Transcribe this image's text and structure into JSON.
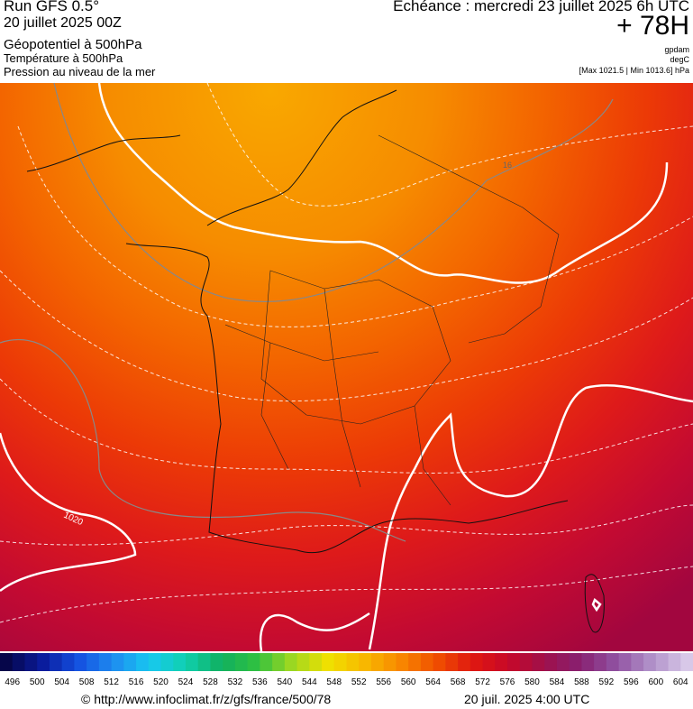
{
  "header": {
    "run": "Run GFS 0.5°",
    "date": "20 juillet 2025 00Z",
    "field": "Géopotentiel à 500hPa",
    "field2": "Température à 500hPa",
    "field3": "Pression au niveau de la mer",
    "valid": "Echéance : mercredi 23 juillet 2025 6h UTC",
    "lead": "+ 78H",
    "unit1": "gpdam",
    "unit2": "degC",
    "unit3": "[Max 1021.5 | Min 1013.6] hPa"
  },
  "map": {
    "contour_label": "1020",
    "temp_label": "16"
  },
  "colorbar": {
    "ticks": [
      496,
      500,
      504,
      508,
      512,
      516,
      520,
      524,
      528,
      532,
      536,
      540,
      544,
      548,
      552,
      556,
      560,
      564,
      568,
      572,
      576,
      580,
      584,
      588,
      592,
      596,
      600,
      604
    ]
  },
  "footer": {
    "source": "© http://www.infoclimat.fr/z/gfs/france/500/78",
    "time": "20 juil. 2025  4:00 UTC"
  }
}
